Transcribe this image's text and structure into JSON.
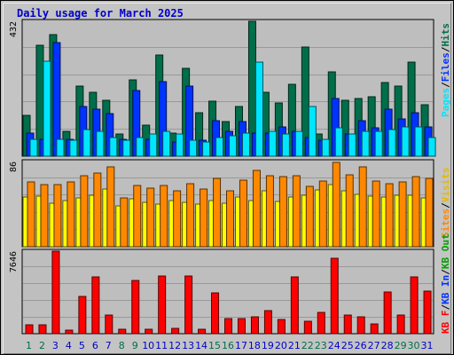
{
  "chart_data": {
    "title": "Daily usage for March 2025",
    "type": "bar",
    "categories": [
      "1",
      "2",
      "3",
      "4",
      "5",
      "6",
      "7",
      "8",
      "9",
      "10",
      "11",
      "12",
      "13",
      "14",
      "15",
      "16",
      "17",
      "18",
      "19",
      "20",
      "21",
      "22",
      "23",
      "24",
      "25",
      "26",
      "27",
      "28",
      "29",
      "30",
      "31"
    ],
    "weekend_days": [
      "1",
      "2",
      "8",
      "9",
      "15",
      "16",
      "22",
      "23",
      "29",
      "30"
    ],
    "panels": [
      {
        "name": "hits-files-pages",
        "y_max_label": "432",
        "ylim": [
          0,
          432
        ],
        "legend": [
          "Pages",
          "Files",
          "Hits"
        ],
        "legend_separators": [
          "/",
          "/"
        ],
        "series": [
          {
            "name": "Hits",
            "color": "#006e4a",
            "values": [
              130,
              355,
              390,
              80,
              225,
              205,
              180,
              70,
              245,
              100,
              325,
              75,
              280,
              140,
              175,
              110,
              160,
              432,
              205,
              170,
              230,
              350,
              70,
              270,
              180,
              185,
              190,
              235,
              225,
              300,
              165
            ]
          },
          {
            "name": "Files",
            "color": "#0033ff",
            "values": [
              75,
              55,
              365,
              55,
              160,
              150,
              135,
              55,
              210,
              55,
              240,
              45,
              225,
              50,
              115,
              80,
              110,
              75,
              75,
              95,
              80,
              60,
              50,
              185,
              70,
              115,
              90,
              150,
              120,
              140,
              95
            ]
          },
          {
            "name": "Pages",
            "color": "#00e6ff",
            "values": [
              55,
              305,
              55,
              50,
              85,
              80,
              60,
              50,
              60,
              70,
              80,
              70,
              50,
              45,
              60,
              65,
              75,
              300,
              80,
              70,
              80,
              160,
              55,
              90,
              70,
              80,
              80,
              85,
              95,
              95,
              60
            ]
          }
        ]
      },
      {
        "name": "visits-sites",
        "y_max_label": "86",
        "ylim": [
          0,
          86
        ],
        "legend": [
          "Sites",
          "Visits"
        ],
        "legend_separators": [
          "/"
        ],
        "series": [
          {
            "name": "Visits",
            "color": "#ffff00",
            "values": [
              50,
              51,
              44,
              47,
              49,
              52,
              58,
              41,
              48,
              45,
              43,
              47,
              45,
              43,
              47,
              44,
              50,
              47,
              56,
              46,
              50,
              52,
              57,
              63,
              56,
              53,
              51,
              50,
              52,
              52,
              49
            ]
          },
          {
            "name": "Sites",
            "color": "#ff8800",
            "values": [
              65,
              63,
              63,
              65,
              72,
              74,
              81,
              49,
              62,
              59,
              62,
              56,
              64,
              58,
              69,
              56,
              67,
              77,
              72,
              71,
              72,
              61,
              66,
              85,
              73,
              81,
              66,
              64,
              65,
              71,
              69
            ]
          }
        ]
      },
      {
        "name": "kbf-kbin-kbout",
        "y_max_label": "7646",
        "ylim": [
          0,
          7646
        ],
        "legend": [
          "KB F",
          "KB In",
          "KB Out"
        ],
        "legend_separators": [
          "/",
          "/"
        ],
        "series": [
          {
            "name": "KB F",
            "color": "#ff0000",
            "values": [
              820,
              820,
              7646,
              320,
              3450,
              5250,
              1750,
              420,
              4950,
              420,
              5350,
              500,
              5350,
              420,
              3750,
              1380,
              1380,
              1560,
              2160,
              1280,
              5250,
              1180,
              1980,
              6960,
              1750,
              1560,
              880,
              3850,
              1750,
              5250,
              3950
            ]
          }
        ]
      }
    ],
    "side_colors": {
      "Hits": "#006e4a",
      "Files": "#0033ff",
      "Pages": "#00e6ff",
      "Visits": "#e6b800",
      "Sites": "#ff8800",
      "KB F": "#ff0000",
      "KB In": "#0033ff",
      "KB Out": "#00a000",
      "separator": "#000000",
      "weekday_tick": "#0000c8",
      "weekend_tick": "#006e4a"
    }
  }
}
